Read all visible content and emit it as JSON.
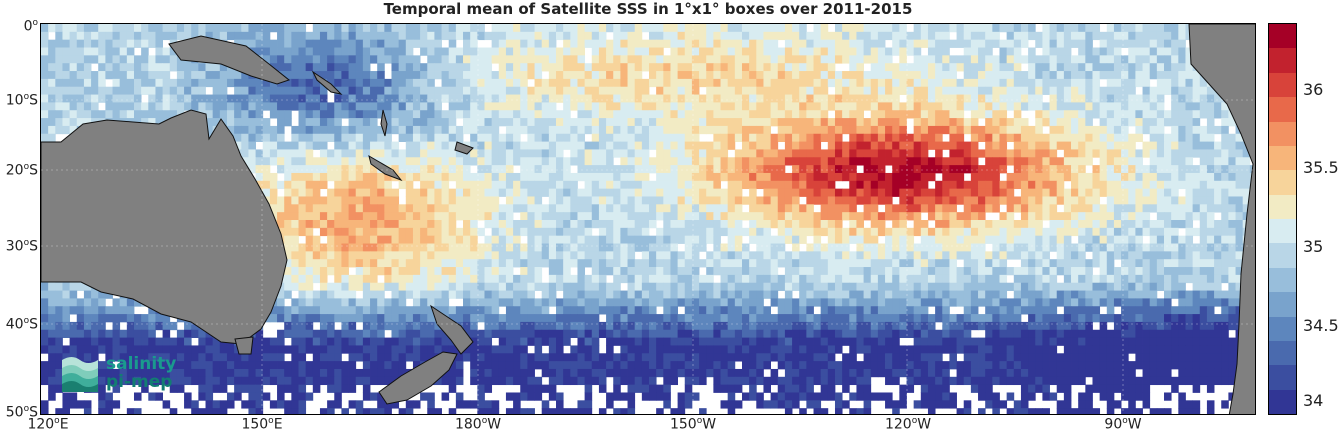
{
  "title": "Temporal mean of Satellite SSS in 1°x1° boxes over 2011-2015",
  "y_ticks": [
    {
      "deg": "0",
      "hemi": ""
    },
    {
      "deg": "10",
      "hemi": "S"
    },
    {
      "deg": "20",
      "hemi": "S"
    },
    {
      "deg": "30",
      "hemi": "S"
    },
    {
      "deg": "40",
      "hemi": "S"
    },
    {
      "deg": "50",
      "hemi": "S"
    }
  ],
  "x_ticks": [
    {
      "deg": "120",
      "hemi": "E"
    },
    {
      "deg": "150",
      "hemi": "E"
    },
    {
      "deg": "180",
      "hemi": "W"
    },
    {
      "deg": "150",
      "hemi": "W"
    },
    {
      "deg": "120",
      "hemi": "W"
    },
    {
      "deg": "90",
      "hemi": "W"
    }
  ],
  "colorbar": {
    "min": 33.9,
    "max": 36.4,
    "tick_labels": [
      "34",
      "34.5",
      "35",
      "35.5",
      "36"
    ],
    "colors": [
      "#313695",
      "#3b4ea0",
      "#4a6aae",
      "#5d86bd",
      "#79a3cc",
      "#98bedb",
      "#b9d6e7",
      "#d8ecf1",
      "#f2ebc4",
      "#f7d49b",
      "#f7b57a",
      "#f29162",
      "#e8694a",
      "#d8433a",
      "#c2222e",
      "#a50026"
    ]
  },
  "logo": {
    "line1": "salinity",
    "line2": "pi-mep"
  },
  "map_extent": {
    "lon_min": 120,
    "lon_max": 290,
    "lat_min": -50,
    "lat_max": 0
  }
}
